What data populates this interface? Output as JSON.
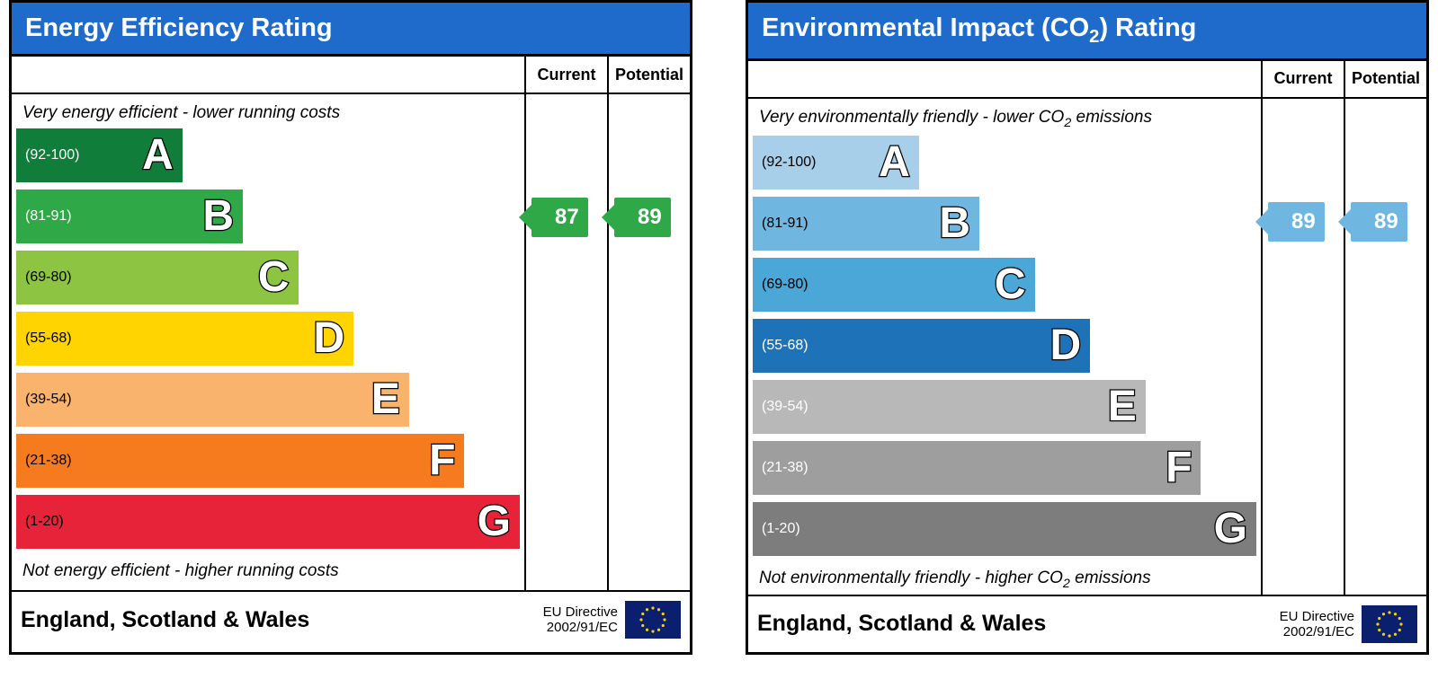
{
  "bands": [
    {
      "letter": "A",
      "range": "(92-100)",
      "width_pct": 33
    },
    {
      "letter": "B",
      "range": "(81-91)",
      "width_pct": 45
    },
    {
      "letter": "C",
      "range": "(69-80)",
      "width_pct": 56
    },
    {
      "letter": "D",
      "range": "(55-68)",
      "width_pct": 67
    },
    {
      "letter": "E",
      "range": "(39-54)",
      "width_pct": 78
    },
    {
      "letter": "F",
      "range": "(21-38)",
      "width_pct": 89
    },
    {
      "letter": "G",
      "range": "(1-20)",
      "width_pct": 100
    }
  ],
  "band_positions_pct": {
    "A": 6.8,
    "B": 19.1,
    "C": 31.4,
    "D": 43.7,
    "E": 56.0,
    "F": 68.3,
    "G": 80.6
  },
  "columns": {
    "current": "Current",
    "potential": "Potential"
  },
  "footer": {
    "region": "England, Scotland & Wales",
    "directive_line1": "EU Directive",
    "directive_line2": "2002/91/EC"
  },
  "energy": {
    "title": "Energy Efficiency Rating",
    "top_note": "Very energy efficient - lower running costs",
    "bottom_note": "Not energy efficient - higher running costs",
    "band_colors": {
      "A": "#107d3a",
      "B": "#2fa848",
      "C": "#8dc542",
      "D": "#ffd400",
      "E": "#f9b36d",
      "F": "#f67b1f",
      "G": "#e62338"
    },
    "band_text_colors": {
      "A": "#ffffff",
      "B": "#ffffff",
      "C": "#000000",
      "D": "#000000",
      "E": "#000000",
      "F": "#000000",
      "G": "#000000"
    },
    "current": {
      "value": "87",
      "band": "B",
      "color": "#2fa848"
    },
    "potential": {
      "value": "89",
      "band": "B",
      "color": "#2fa848"
    }
  },
  "environmental": {
    "title_html": "Environmental Impact (CO<sub>2</sub>) Rating",
    "top_note_html": "Very environmentally friendly - lower CO<sub class='small'>2</sub> emissions",
    "bottom_note_html": "Not environmentally friendly - higher CO<sub class='small'>2</sub> emissions",
    "band_colors": {
      "A": "#a7cfe9",
      "B": "#6fb6e0",
      "C": "#4aa7d8",
      "D": "#1e73b8",
      "E": "#b8b8b8",
      "F": "#9e9e9e",
      "G": "#7d7d7d"
    },
    "band_text_colors": {
      "A": "#000000",
      "B": "#000000",
      "C": "#000000",
      "D": "#ffffff",
      "E": "#ffffff",
      "F": "#ffffff",
      "G": "#ffffff"
    },
    "current": {
      "value": "89",
      "band": "B",
      "color": "#6fb6e0"
    },
    "potential": {
      "value": "89",
      "band": "B",
      "color": "#6fb6e0"
    }
  }
}
